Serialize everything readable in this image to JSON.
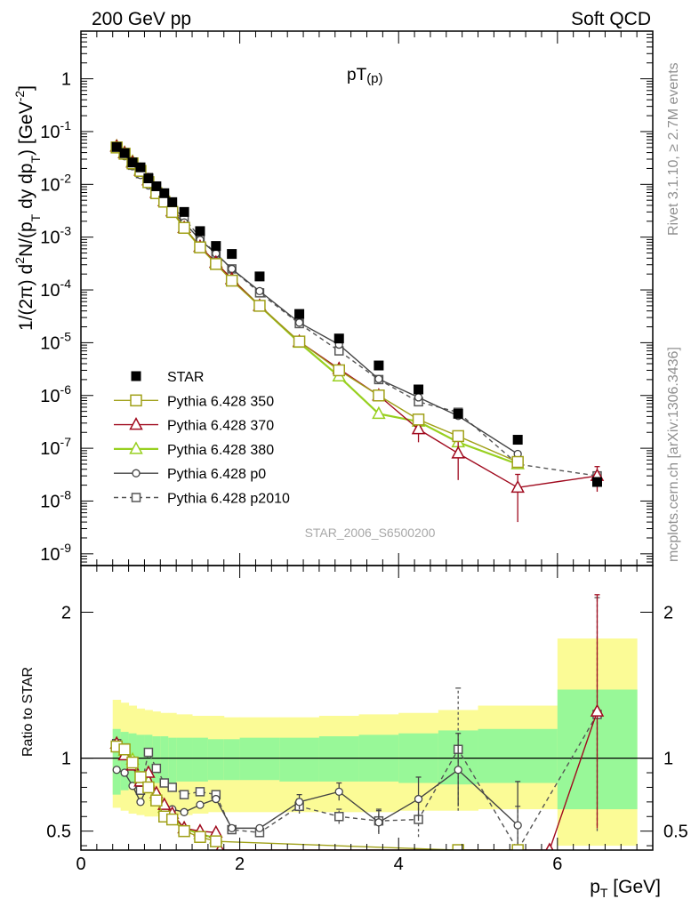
{
  "header": {
    "left": "200 GeV pp",
    "right": "Soft QCD"
  },
  "side": {
    "version": "Rivet 3.1.10, ≥ 2.7M events",
    "source": "mcplots.cern.ch [arXiv:1306.3436]"
  },
  "analysis_id": "STAR_2006_S6500200",
  "colors": {
    "star": "#000000",
    "p350": "#a0a018",
    "p370": "#a00a1e",
    "p380": "#98d020",
    "p0": "#444444",
    "p2010": "#555555",
    "band_inner": "#98f898",
    "band_outer": "#fbfb96"
  },
  "chart_data": [
    {
      "type": "line",
      "title_main": "pT",
      "title_sub": "(p)",
      "ylabel_parts": [
        "1/(2",
        "π",
        ") d",
        "2",
        "N/(p",
        "T",
        " dy dp",
        "T",
        ") [GeV",
        "-2",
        "]"
      ],
      "yscale": "log",
      "xlim": [
        0,
        7.2
      ],
      "ylim": [
        6e-10,
        8
      ],
      "ytick_labels": [
        {
          "v": 1e-09,
          "b": "10",
          "e": "-9"
        },
        {
          "v": 1e-08,
          "b": "10",
          "e": "-8"
        },
        {
          "v": 1e-07,
          "b": "10",
          "e": "-7"
        },
        {
          "v": 1e-06,
          "b": "10",
          "e": "-6"
        },
        {
          "v": 1e-05,
          "b": "10",
          "e": "-5"
        },
        {
          "v": 0.0001,
          "b": "10",
          "e": "-4"
        },
        {
          "v": 0.001,
          "b": "10",
          "e": "-3"
        },
        {
          "v": 0.01,
          "b": "10",
          "e": "-2"
        },
        {
          "v": 0.1,
          "b": "10",
          "e": "-1"
        },
        {
          "v": 1,
          "b": "1",
          "e": ""
        }
      ],
      "series": [
        {
          "name": "STAR",
          "key": "star",
          "style": "square-filled",
          "x": [
            0.45,
            0.55,
            0.65,
            0.75,
            0.85,
            0.95,
            1.05,
            1.15,
            1.3,
            1.5,
            1.7,
            1.9,
            2.25,
            2.75,
            3.25,
            3.75,
            4.25,
            4.75,
            5.5,
            6.5
          ],
          "y": [
            0.051,
            0.039,
            0.026,
            0.021,
            0.013,
            0.0092,
            0.0068,
            0.0046,
            0.003,
            0.0013,
            0.00068,
            0.00048,
            0.00018,
            3.5e-05,
            1.2e-05,
            3.7e-06,
            1.3e-06,
            4.5e-07,
            1.45e-07,
            2.3e-08
          ]
        },
        {
          "name": "Pythia 6.428 350",
          "key": "p350",
          "style": "square-open",
          "x": [
            0.45,
            0.55,
            0.65,
            0.75,
            0.85,
            0.95,
            1.05,
            1.15,
            1.3,
            1.5,
            1.7,
            1.9,
            2.25,
            2.75,
            3.25,
            3.75,
            4.25,
            4.75,
            5.5
          ],
          "y": [
            0.05,
            0.038,
            0.025,
            0.018,
            0.011,
            0.0068,
            0.0047,
            0.003,
            0.0015,
            0.00064,
            0.00031,
            0.00015,
            5e-05,
            1.05e-05,
            3e-06,
            1e-06,
            3.5e-07,
            1.7e-07,
            5.5e-08
          ]
        },
        {
          "name": "Pythia 6.428 370",
          "key": "p370",
          "style": "triangle-open",
          "x": [
            0.45,
            0.55,
            0.65,
            0.75,
            0.85,
            0.95,
            1.05,
            1.15,
            1.3,
            1.5,
            1.7,
            1.9,
            2.25,
            2.75,
            3.25,
            3.75,
            4.25,
            4.75,
            5.5,
            6.5
          ],
          "y": [
            0.052,
            0.039,
            0.026,
            0.018,
            0.012,
            0.0069,
            0.0048,
            0.0031,
            0.0015,
            0.00066,
            0.00033,
            0.00016,
            5e-05,
            1.05e-05,
            3.2e-06,
            1e-06,
            2.3e-07,
            8e-08,
            1.8e-08,
            3e-08
          ],
          "yerr": [
            0,
            0,
            0,
            0,
            0,
            0,
            0,
            0,
            0,
            0,
            0,
            0,
            0,
            0,
            0,
            0,
            1e-07,
            5.5e-08,
            1.4e-08,
            1.5e-08
          ]
        },
        {
          "name": "Pythia 6.428 380",
          "key": "p380",
          "style": "triangle-open",
          "x": [
            0.45,
            0.55,
            0.65,
            0.75,
            0.85,
            0.95,
            1.05,
            1.15,
            1.3,
            1.5,
            1.7,
            1.9,
            2.25,
            2.75,
            3.25,
            3.75,
            4.25,
            4.75,
            5.5
          ],
          "y": [
            0.053,
            0.04,
            0.027,
            0.019,
            0.012,
            0.007,
            0.0048,
            0.0031,
            0.0015,
            0.00065,
            0.00032,
            0.00016,
            5e-05,
            1e-05,
            2.3e-06,
            4.5e-07,
            3.2e-07,
            1.3e-07,
            5e-08
          ]
        },
        {
          "name": "Pythia 6.428 p0",
          "key": "p0",
          "style": "circle-open",
          "x": [
            0.45,
            0.55,
            0.65,
            0.75,
            0.85,
            0.95,
            1.05,
            1.15,
            1.3,
            1.5,
            1.7,
            1.9,
            2.25,
            2.75,
            3.25,
            3.75,
            4.25,
            4.75,
            5.5
          ],
          "y": [
            0.047,
            0.034,
            0.022,
            0.015,
            0.0095,
            0.0065,
            0.0047,
            0.003,
            0.0019,
            0.00089,
            0.00049,
            0.00025,
            9.5e-05,
            2.4e-05,
            9.2e-06,
            2.05e-06,
            9.2e-07,
            4.1e-07,
            7.8e-08
          ]
        },
        {
          "name": "Pythia 6.428 p2010",
          "key": "p2010",
          "style": "square-open-dashed",
          "x": [
            0.45,
            0.55,
            0.65,
            0.75,
            0.85,
            0.95,
            1.05,
            1.15,
            1.3,
            1.5,
            1.7,
            1.9,
            2.25,
            2.75,
            3.25,
            3.75,
            4.25,
            4.75,
            5.5,
            6.5
          ],
          "y": [
            0.05,
            0.037,
            0.023,
            0.016,
            0.0135,
            0.0085,
            0.0055,
            0.0037,
            0.0023,
            0.00098,
            0.00048,
            0.00025,
            8.8e-05,
            2.3e-05,
            7e-06,
            2e-06,
            7.6e-07,
            4.8e-07,
            5e-08,
            3e-08
          ]
        }
      ]
    },
    {
      "type": "line",
      "ylabel": "Ratio to STAR",
      "xlabel_base": "p",
      "xlabel_sub": "T",
      "xlabel_unit": " [GeV]",
      "xlim": [
        0,
        7.2
      ],
      "ylim": [
        0.37,
        2.32
      ],
      "xtick_labels": [
        "0",
        "2",
        "4",
        "6"
      ],
      "ytick_labels": [
        "0.5",
        "1",
        "2"
      ],
      "bands": {
        "edges": [
          0.4,
          0.5,
          0.6,
          0.7,
          0.8,
          0.9,
          1.0,
          1.1,
          1.2,
          1.4,
          1.6,
          1.8,
          2.0,
          2.5,
          3.0,
          3.5,
          4.0,
          4.5,
          5.0,
          6.0,
          7.0
        ],
        "outer_lo": [
          0.66,
          0.64,
          0.62,
          0.61,
          0.6,
          0.6,
          0.6,
          0.61,
          0.61,
          0.62,
          0.63,
          0.63,
          0.63,
          0.63,
          0.63,
          0.63,
          0.64,
          0.64,
          0.65,
          0.4
        ],
        "outer_hi": [
          1.4,
          1.38,
          1.36,
          1.34,
          1.33,
          1.32,
          1.31,
          1.31,
          1.3,
          1.29,
          1.29,
          1.28,
          1.28,
          1.28,
          1.29,
          1.3,
          1.31,
          1.33,
          1.36,
          1.82
        ],
        "inner_lo": [
          0.75,
          0.78,
          0.8,
          0.82,
          0.82,
          0.83,
          0.83,
          0.83,
          0.84,
          0.84,
          0.85,
          0.85,
          0.85,
          0.84,
          0.84,
          0.84,
          0.83,
          0.82,
          0.83,
          0.65
        ],
        "inner_hi": [
          1.2,
          1.18,
          1.17,
          1.16,
          1.16,
          1.15,
          1.15,
          1.14,
          1.14,
          1.14,
          1.13,
          1.13,
          1.14,
          1.14,
          1.15,
          1.16,
          1.17,
          1.19,
          1.2,
          1.47
        ]
      },
      "series": [
        {
          "key": "p350",
          "style": "square-open",
          "x": [
            0.45,
            0.55,
            0.65,
            0.75,
            0.85,
            0.95,
            1.05,
            1.15,
            1.3,
            1.5,
            1.7,
            4.75,
            5.5
          ],
          "y": [
            1.08,
            1.06,
            0.97,
            0.87,
            0.8,
            0.71,
            0.6,
            0.58,
            0.5,
            0.46,
            0.43,
            0.37,
            0.37
          ]
        },
        {
          "key": "p370",
          "style": "triangle-open",
          "x": [
            0.45,
            0.55,
            0.65,
            0.75,
            0.85,
            0.95,
            1.05,
            1.15,
            1.3,
            1.5,
            1.7,
            1.75,
            5.9,
            6.5
          ],
          "y": [
            1.1,
            1.02,
            0.95,
            0.84,
            0.9,
            0.76,
            0.68,
            0.62,
            0.52,
            0.5,
            0.49,
            0.37,
            0.37,
            1.32
          ],
          "yerr": [
            0,
            0,
            0,
            0,
            0,
            0,
            0,
            0,
            0,
            0,
            0,
            0,
            0,
            0.8
          ]
        },
        {
          "key": "p380",
          "style": "triangle-open",
          "x": [
            0.45,
            0.55,
            0.65,
            0.75,
            0.85,
            0.95,
            1.05,
            1.15,
            1.3,
            1.5,
            1.7
          ],
          "y": [
            1.1,
            1.05,
            0.99,
            0.86,
            0.84,
            0.74,
            0.66,
            0.6,
            0.52,
            0.48,
            0.45
          ]
        },
        {
          "key": "p0",
          "style": "circle-open",
          "x": [
            0.45,
            0.55,
            0.65,
            0.75,
            0.85,
            0.95,
            1.05,
            1.15,
            1.3,
            1.5,
            1.7,
            1.9,
            2.25,
            2.75,
            3.25,
            3.75,
            4.25,
            4.75,
            5.5
          ],
          "y": [
            0.92,
            0.9,
            0.81,
            0.7,
            0.82,
            0.72,
            0.63,
            0.65,
            0.63,
            0.68,
            0.72,
            0.52,
            0.52,
            0.7,
            0.77,
            0.56,
            0.72,
            0.92,
            0.54
          ],
          "yerr": [
            0,
            0,
            0,
            0,
            0,
            0,
            0,
            0,
            0,
            0,
            0,
            0,
            0,
            0.05,
            0.06,
            0.08,
            0.15,
            0.25,
            0.3
          ]
        },
        {
          "key": "p2010",
          "style": "square-open-dashed",
          "x": [
            0.45,
            0.55,
            0.65,
            0.75,
            0.85,
            0.95,
            1.05,
            1.15,
            1.3,
            1.5,
            1.7,
            1.9,
            2.25,
            2.75,
            3.25,
            3.75,
            4.25,
            4.75,
            5.5,
            6.5
          ],
          "y": [
            1.1,
            1.07,
            0.96,
            0.78,
            1.04,
            0.93,
            0.83,
            0.8,
            0.75,
            0.77,
            0.75,
            0.51,
            0.49,
            0.67,
            0.6,
            0.57,
            0.58,
            1.06,
            0.37,
            1.3
          ],
          "yerr": [
            0,
            0,
            0,
            0,
            0,
            0,
            0,
            0,
            0,
            0,
            0,
            0,
            0,
            0.05,
            0.05,
            0.08,
            0.12,
            0.42,
            0.3,
            0.8
          ]
        }
      ]
    }
  ]
}
